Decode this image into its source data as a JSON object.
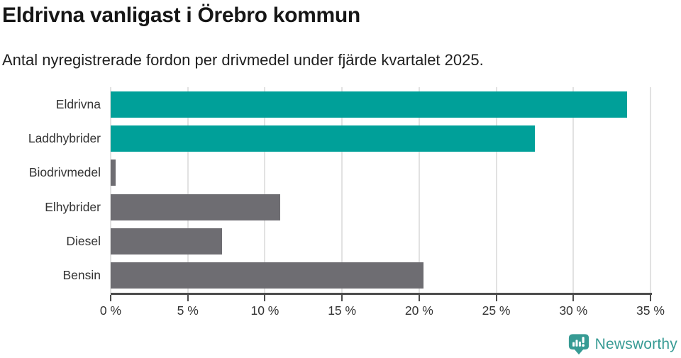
{
  "header": {
    "title": "Eldrivna vanligast i Örebro kommun",
    "subtitle": "Antal nyregistrerade fordon per drivmedel under fjärde kvartalet 2025."
  },
  "chart_data": {
    "type": "bar",
    "orientation": "horizontal",
    "title": "Eldrivna vanligast i Örebro kommun",
    "subtitle": "Antal nyregistrerade fordon per drivmedel under fjärde kvartalet 2025.",
    "categories": [
      "Eldrivna",
      "Laddhybrider",
      "Biodrivmedel",
      "Elhybrider",
      "Diesel",
      "Bensin"
    ],
    "values": [
      33.5,
      27.5,
      0.3,
      11.0,
      7.2,
      20.3
    ],
    "unit": "%",
    "xlim": [
      0,
      35
    ],
    "x_ticks": [
      0,
      5,
      10,
      15,
      20,
      25,
      30,
      35
    ],
    "x_tick_suffix": " %",
    "grid": true,
    "legend": "none",
    "bar_colors": [
      "#00A099",
      "#00A099",
      "#6E6D72",
      "#6E6D72",
      "#6E6D72",
      "#6E6D72"
    ],
    "highlight_color": "#00A099",
    "default_color": "#6E6D72",
    "gridline_color": "#E2E2E2",
    "axis_color": "#4D4D4D",
    "label_color": "#333333"
  },
  "footer": {
    "brand": "Newsworthy",
    "brand_color": "#379B94"
  }
}
